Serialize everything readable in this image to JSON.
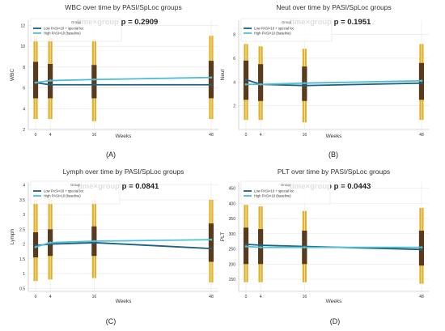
{
  "figure": {
    "panel_letters": [
      "(A)",
      "(B)",
      "(C)",
      "(D)"
    ]
  },
  "colors": {
    "low": "#1f5f80",
    "high": "#4fbfd2",
    "ci": "#e3b022",
    "iqr": "#5a3a1c",
    "grid": "#e6e6e6",
    "axis": "#cccccc",
    "text": "#333333"
  },
  "legend": {
    "title": "Group",
    "entries_AB": [
      "Low PASI<10 + special loc",
      "High PASI>10 (baseline)"
    ],
    "entries_C": [
      "Low PASI<10 + special loc",
      "High PASI>10 (baseline)"
    ],
    "entries_D": [
      "Low PASI<10 + special loc",
      "High PASI>10 (baseline)"
    ]
  },
  "chart_data": [
    {
      "type": "line",
      "title": "WBC over time by PASI/SpLoc groups",
      "annotation": "time×group p = 0.2909",
      "xlabel": "Weeks",
      "ylabel": "WBC",
      "x": [
        0,
        4,
        16,
        48
      ],
      "xticks": [
        "0",
        "4",
        "16",
        "48"
      ],
      "yticks": [
        2,
        4,
        6,
        8,
        10,
        12
      ],
      "ylim": [
        2,
        12.5
      ],
      "series": [
        {
          "name": "Low PASI<10 + special loc",
          "values": [
            6.5,
            6.3,
            6.3,
            6.3
          ]
        },
        {
          "name": "High PASI>10 (baseline)",
          "values": [
            6.5,
            6.7,
            6.8,
            7.0
          ]
        }
      ],
      "ci": [
        [
          3.0,
          11.0
        ],
        [
          3.0,
          10.8
        ],
        [
          2.8,
          10.6
        ],
        [
          3.0,
          11.0
        ]
      ],
      "iqr": [
        [
          5.0,
          8.5
        ],
        [
          5.0,
          8.3
        ],
        [
          5.0,
          8.2
        ],
        [
          5.0,
          8.6
        ]
      ],
      "grid": true,
      "legend": "top-left"
    },
    {
      "type": "line",
      "title": "Neut over time by PASI/SpLoc groups",
      "annotation": "time×group p = 0.1951",
      "xlabel": "Weeks",
      "ylabel": "Neut",
      "x": [
        0,
        4,
        16,
        48
      ],
      "xticks": [
        "0",
        "4",
        "16",
        "48"
      ],
      "yticks": [
        2,
        4,
        6,
        8
      ],
      "ylim": [
        0,
        9.2
      ],
      "series": [
        {
          "name": "Low PASI<10 + special loc",
          "values": [
            4.2,
            3.8,
            3.7,
            3.9
          ]
        },
        {
          "name": "High PASI>10 (baseline)",
          "values": [
            3.8,
            3.8,
            3.9,
            4.1
          ]
        }
      ],
      "ci": [
        [
          0.8,
          7.2
        ],
        [
          0.8,
          7.0
        ],
        [
          0.6,
          6.8
        ],
        [
          0.8,
          7.2
        ]
      ],
      "iqr": [
        [
          2.5,
          5.8
        ],
        [
          2.4,
          5.5
        ],
        [
          2.4,
          5.3
        ],
        [
          2.5,
          5.6
        ]
      ],
      "grid": true,
      "legend": "top-left"
    },
    {
      "type": "line",
      "title": "Lymph over time by PASI/SpLoc groups",
      "annotation": "time×group p = 0.0841",
      "xlabel": "Weeks",
      "ylabel": "Lymph",
      "x": [
        0,
        4,
        16,
        48
      ],
      "xticks": [
        "0",
        "4",
        "16",
        "48"
      ],
      "yticks": [
        0.5,
        1.0,
        1.5,
        2.0,
        2.5,
        3.0,
        3.5,
        4.0
      ],
      "ylim": [
        0.4,
        4.1
      ],
      "series": [
        {
          "name": "Low PASI<10 + special loc",
          "values": [
            1.95,
            2.0,
            2.05,
            1.85
          ]
        },
        {
          "name": "High PASI>10 (baseline)",
          "values": [
            1.9,
            2.05,
            2.1,
            2.15
          ]
        }
      ],
      "ci": [
        [
          0.75,
          3.5
        ],
        [
          0.8,
          3.5
        ],
        [
          0.85,
          3.5
        ],
        [
          0.7,
          3.5
        ]
      ],
      "iqr": [
        [
          1.55,
          2.4
        ],
        [
          1.6,
          2.5
        ],
        [
          1.6,
          2.6
        ],
        [
          1.4,
          2.7
        ]
      ],
      "grid": true,
      "legend": "top-left"
    },
    {
      "type": "line",
      "title": "PLT over time by PASI/SpLoc groups",
      "annotation": "time×group p = 0.0443",
      "xlabel": "Weeks",
      "ylabel": "PLT",
      "x": [
        0,
        4,
        16,
        48
      ],
      "xticks": [
        "0",
        "4",
        "16",
        "48"
      ],
      "yticks": [
        150,
        200,
        250,
        300,
        350,
        400,
        450
      ],
      "ylim": [
        110,
        470
      ],
      "series": [
        {
          "name": "Low PASI<10 + special loc",
          "values": [
            265,
            262,
            258,
            248
          ]
        },
        {
          "name": "High PASI>10 (baseline)",
          "values": [
            258,
            255,
            255,
            255
          ]
        }
      ],
      "ci": [
        [
          140,
          395
        ],
        [
          140,
          390
        ],
        [
          140,
          375
        ],
        [
          135,
          385
        ]
      ],
      "iqr": [
        [
          200,
          320
        ],
        [
          200,
          315
        ],
        [
          200,
          310
        ],
        [
          195,
          310
        ]
      ],
      "grid": true,
      "legend": "top-left"
    }
  ]
}
